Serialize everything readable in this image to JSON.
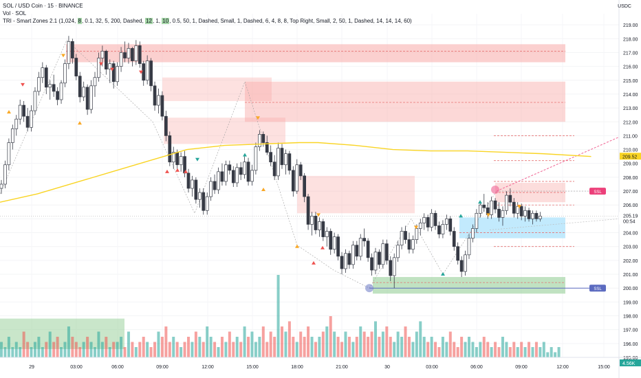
{
  "header": {
    "title": "SOL / USD Coin · 15 · BINANCE",
    "line2": "Vol · SOL",
    "indicator_prefix": "TRI - Smart Zones 2.1 (1,024,",
    "indicator_hl1": "8",
    "indicator_mid1": ", 0.1, 32, 5, 200, Dashed,",
    "indicator_hl2": "12",
    "indicator_mid2": ", 1,",
    "indicator_hl3": "10",
    "indicator_rest": ", 0.5, 50, 1, Dashed, Small, 1, Dashed, 6, 4, 8, 8, Top Right, Small, 2, 50, 1, Dashed, 14, 14, 14, 60)",
    "currency": "USDC"
  },
  "axis": {
    "price_ticks": [
      "219.00",
      "218.00",
      "217.00",
      "216.00",
      "215.00",
      "214.00",
      "213.00",
      "212.00",
      "211.00",
      "210.00",
      "209.00",
      "208.00",
      "207.00",
      "206.00",
      "205.00",
      "204.00",
      "203.00",
      "202.00",
      "201.00",
      "200.00",
      "199.00",
      "198.00",
      "197.00",
      "196.00",
      "195.00"
    ],
    "time_ticks": [
      "29",
      "03:00",
      "06:00",
      "09:00",
      "12:00",
      "15:00",
      "18:00",
      "21:00",
      "30",
      "03:00",
      "06:00",
      "09:00",
      "12:00",
      "15:00"
    ],
    "current_price": "205.19",
    "countdown": "00:54",
    "ma_price": "209.52",
    "volume_label": "4.56K"
  },
  "colors": {
    "up": "#26a69a",
    "down": "#ef5350",
    "candle": "#363a45",
    "ma": "#f9d423",
    "supply": "#f8a9a7",
    "demand": "#a5d6a7",
    "demand_blue": "#b3e5fc",
    "line_red": "#f06292",
    "level_blue": "#5c6bc0"
  },
  "zone_tags": {
    "swing_high": "SSL",
    "swing_low": "SSL"
  },
  "chart_data": {
    "type": "candlestick",
    "ylim": [
      195,
      219.8
    ],
    "x_range": [
      0,
      380
    ],
    "moving_average": [
      [
        0,
        206.2
      ],
      [
        20,
        206.8
      ],
      [
        40,
        207.6
      ],
      [
        60,
        208.4
      ],
      [
        80,
        209.2
      ],
      [
        90,
        209.6
      ],
      [
        100,
        210.0
      ],
      [
        120,
        210.3
      ],
      [
        140,
        210.4
      ],
      [
        160,
        210.5
      ],
      [
        170,
        210.5
      ],
      [
        190,
        210.3
      ],
      [
        210,
        210.0
      ],
      [
        230,
        209.9
      ],
      [
        250,
        209.9
      ],
      [
        270,
        209.8
      ],
      [
        290,
        209.7
      ],
      [
        316,
        209.5
      ]
    ],
    "candles": [
      [
        0,
        207.2,
        207.8,
        206.8,
        207.5
      ],
      [
        2,
        207.5,
        209.2,
        207.2,
        208.9
      ],
      [
        4,
        208.9,
        210.8,
        208.5,
        210.5
      ],
      [
        6,
        210.5,
        211.8,
        210.0,
        211.5
      ],
      [
        8,
        211.5,
        212.5,
        211.0,
        212.2
      ],
      [
        10,
        212.2,
        213.6,
        211.8,
        213.2
      ],
      [
        12,
        213.2,
        213.5,
        212.0,
        212.4
      ],
      [
        14,
        212.4,
        213.0,
        211.3,
        211.6
      ],
      [
        16,
        211.6,
        213.2,
        211.3,
        212.8
      ],
      [
        18,
        212.8,
        214.5,
        212.5,
        214.2
      ],
      [
        20,
        214.2,
        215.6,
        213.9,
        215.2
      ],
      [
        22,
        215.2,
        216.3,
        214.8,
        215.9
      ],
      [
        24,
        215.9,
        216.1,
        214.0,
        214.5
      ],
      [
        26,
        214.5,
        215.0,
        213.6,
        214.7
      ],
      [
        28,
        214.7,
        215.4,
        213.8,
        214.2
      ],
      [
        30,
        214.2,
        214.5,
        213.2,
        213.6
      ],
      [
        32,
        213.6,
        215.0,
        213.3,
        214.8
      ],
      [
        34,
        214.8,
        216.5,
        214.5,
        216.2
      ],
      [
        36,
        216.2,
        218.2,
        215.8,
        217.8
      ],
      [
        38,
        217.8,
        218.0,
        216.2,
        216.6
      ],
      [
        40,
        216.6,
        216.9,
        215.0,
        215.3
      ],
      [
        42,
        215.3,
        215.6,
        213.4,
        213.8
      ],
      [
        44,
        213.8,
        214.9,
        213.5,
        214.5
      ],
      [
        46,
        214.5,
        214.7,
        212.5,
        212.9
      ],
      [
        48,
        212.9,
        215.0,
        212.6,
        214.6
      ],
      [
        50,
        214.6,
        215.6,
        213.8,
        215.2
      ],
      [
        52,
        215.2,
        217.0,
        214.9,
        216.6
      ],
      [
        54,
        216.6,
        217.5,
        216.0,
        217.1
      ],
      [
        56,
        217.1,
        217.2,
        215.4,
        215.8
      ],
      [
        58,
        215.8,
        216.5,
        214.8,
        216.2
      ],
      [
        60,
        216.2,
        216.4,
        214.4,
        214.9
      ],
      [
        62,
        214.9,
        216.3,
        214.6,
        216.0
      ],
      [
        64,
        216.0,
        217.4,
        215.6,
        217.0
      ],
      [
        66,
        217.0,
        217.8,
        216.3,
        216.6
      ],
      [
        68,
        216.6,
        217.7,
        216.2,
        217.3
      ],
      [
        70,
        217.3,
        217.4,
        216.0,
        216.4
      ],
      [
        72,
        216.4,
        217.9,
        216.1,
        217.5
      ],
      [
        74,
        217.5,
        217.8,
        215.9,
        216.2
      ],
      [
        76,
        216.2,
        216.4,
        214.6,
        215.0
      ],
      [
        78,
        215.0,
        216.8,
        214.7,
        216.4
      ],
      [
        80,
        216.4,
        216.6,
        214.2,
        214.6
      ],
      [
        82,
        214.6,
        214.9,
        212.8,
        213.2
      ],
      [
        84,
        213.2,
        214.4,
        212.6,
        213.9
      ],
      [
        86,
        213.9,
        214.2,
        212.1,
        212.4
      ],
      [
        88,
        212.4,
        212.8,
        210.6,
        211.0
      ],
      [
        90,
        211.0,
        211.3,
        208.8,
        209.1
      ],
      [
        92,
        209.1,
        210.2,
        208.6,
        209.8
      ],
      [
        94,
        209.8,
        210.0,
        208.6,
        208.9
      ],
      [
        96,
        208.9,
        209.8,
        208.4,
        209.5
      ],
      [
        98,
        209.5,
        209.9,
        208.0,
        208.3
      ],
      [
        100,
        208.3,
        208.6,
        206.9,
        207.2
      ],
      [
        102,
        207.2,
        208.1,
        206.6,
        207.8
      ],
      [
        104,
        207.8,
        208.0,
        206.1,
        206.4
      ],
      [
        106,
        206.4,
        207.2,
        205.8,
        206.9
      ],
      [
        108,
        206.9,
        207.2,
        205.3,
        205.6
      ],
      [
        110,
        205.6,
        206.9,
        205.3,
        206.6
      ],
      [
        112,
        206.6,
        208.0,
        206.3,
        207.7
      ],
      [
        114,
        207.7,
        208.2,
        206.8,
        207.1
      ],
      [
        116,
        207.1,
        208.7,
        206.8,
        208.4
      ],
      [
        118,
        208.4,
        209.0,
        207.4,
        207.7
      ],
      [
        120,
        207.7,
        209.2,
        207.4,
        208.9
      ],
      [
        122,
        208.9,
        209.2,
        208.2,
        208.5
      ],
      [
        124,
        208.5,
        208.8,
        207.3,
        207.6
      ],
      [
        126,
        207.6,
        209.0,
        207.3,
        208.7
      ],
      [
        128,
        208.7,
        209.1,
        207.8,
        208.2
      ],
      [
        130,
        208.2,
        209.5,
        207.9,
        209.1
      ],
      [
        132,
        209.1,
        209.4,
        207.4,
        207.7
      ],
      [
        134,
        207.7,
        208.9,
        207.4,
        208.5
      ],
      [
        136,
        208.5,
        210.5,
        208.2,
        210.2
      ],
      [
        138,
        210.2,
        211.4,
        209.9,
        211.1
      ],
      [
        140,
        211.1,
        211.3,
        210.2,
        210.5
      ],
      [
        142,
        210.5,
        211.0,
        209.6,
        209.8
      ],
      [
        144,
        209.8,
        210.3,
        208.8,
        209.1
      ],
      [
        146,
        209.1,
        209.6,
        207.8,
        208.1
      ],
      [
        148,
        208.1,
        210.5,
        207.8,
        210.1
      ],
      [
        150,
        210.1,
        210.4,
        208.6,
        208.9
      ],
      [
        152,
        208.9,
        210.0,
        208.2,
        209.7
      ],
      [
        154,
        209.7,
        209.9,
        208.2,
        208.5
      ],
      [
        156,
        208.5,
        208.8,
        206.6,
        207.0
      ],
      [
        158,
        207.0,
        209.3,
        206.8,
        208.9
      ],
      [
        160,
        208.9,
        209.1,
        207.8,
        208.1
      ],
      [
        162,
        208.1,
        208.3,
        206.2,
        206.6
      ],
      [
        164,
        206.6,
        206.8,
        204.2,
        204.6
      ],
      [
        166,
        204.6,
        205.5,
        203.8,
        205.2
      ],
      [
        168,
        205.2,
        205.5,
        203.9,
        204.2
      ],
      [
        170,
        204.2,
        205.1,
        203.7,
        204.8
      ],
      [
        172,
        204.8,
        205.0,
        203.4,
        203.7
      ],
      [
        174,
        203.7,
        204.4,
        203.0,
        204.1
      ],
      [
        176,
        204.1,
        204.3,
        202.4,
        202.8
      ],
      [
        178,
        202.8,
        204.0,
        202.5,
        203.7
      ],
      [
        180,
        203.7,
        203.9,
        202.0,
        202.3
      ],
      [
        182,
        202.3,
        202.6,
        201.0,
        201.4
      ],
      [
        184,
        201.4,
        202.8,
        201.1,
        202.5
      ],
      [
        186,
        202.5,
        202.7,
        201.4,
        201.7
      ],
      [
        188,
        201.7,
        203.4,
        201.4,
        203.1
      ],
      [
        190,
        203.1,
        203.4,
        202.0,
        202.3
      ],
      [
        192,
        202.3,
        203.9,
        202.0,
        203.6
      ],
      [
        194,
        203.6,
        204.3,
        203.0,
        203.4
      ],
      [
        196,
        203.4,
        203.6,
        201.9,
        202.2
      ],
      [
        198,
        202.2,
        202.5,
        200.9,
        201.3
      ],
      [
        200,
        201.3,
        202.9,
        201.0,
        202.6
      ],
      [
        202,
        202.6,
        202.8,
        201.4,
        201.7
      ],
      [
        204,
        201.7,
        203.5,
        201.4,
        203.2
      ],
      [
        206,
        203.2,
        203.5,
        201.7,
        202.0
      ],
      [
        208,
        202.0,
        202.3,
        200.5,
        200.9
      ],
      [
        210,
        200.9,
        202.5,
        200.0,
        202.2
      ],
      [
        212,
        202.2,
        203.4,
        201.9,
        203.1
      ],
      [
        214,
        203.1,
        204.4,
        202.8,
        204.1
      ],
      [
        216,
        204.1,
        204.5,
        203.2,
        203.5
      ],
      [
        218,
        203.5,
        204.0,
        202.5,
        202.8
      ],
      [
        220,
        202.8,
        203.8,
        202.5,
        203.5
      ],
      [
        222,
        203.5,
        204.6,
        203.2,
        204.3
      ],
      [
        224,
        204.3,
        205.0,
        203.8,
        204.7
      ],
      [
        226,
        204.7,
        205.4,
        204.2,
        205.1
      ],
      [
        228,
        205.1,
        205.3,
        204.1,
        204.4
      ],
      [
        230,
        204.4,
        205.7,
        204.1,
        205.4
      ],
      [
        232,
        205.4,
        205.6,
        204.2,
        204.5
      ],
      [
        234,
        204.5,
        204.8,
        203.6,
        203.9
      ],
      [
        236,
        203.9,
        204.9,
        203.6,
        204.6
      ],
      [
        238,
        204.6,
        205.3,
        204.2,
        205.0
      ],
      [
        240,
        205.0,
        205.2,
        203.8,
        204.1
      ],
      [
        242,
        204.1,
        204.4,
        202.7,
        203.0
      ],
      [
        244,
        203.0,
        203.3,
        201.7,
        202.0
      ],
      [
        246,
        202.0,
        202.3,
        200.8,
        201.2
      ],
      [
        248,
        201.2,
        202.7,
        200.9,
        202.4
      ],
      [
        250,
        202.4,
        203.9,
        202.1,
        203.6
      ],
      [
        252,
        203.6,
        204.6,
        203.3,
        204.3
      ],
      [
        254,
        204.3,
        205.7,
        204.0,
        205.4
      ],
      [
        256,
        205.4,
        206.3,
        205.1,
        206.0
      ],
      [
        258,
        206.0,
        206.8,
        205.5,
        205.8
      ],
      [
        260,
        205.8,
        206.2,
        205.0,
        205.3
      ],
      [
        262,
        205.3,
        206.6,
        205.0,
        206.3
      ],
      [
        264,
        206.3,
        206.5,
        205.4,
        205.7
      ],
      [
        266,
        205.7,
        206.2,
        204.8,
        205.1
      ],
      [
        268,
        205.1,
        205.9,
        204.5,
        205.6
      ],
      [
        270,
        205.6,
        207.0,
        205.3,
        206.7
      ],
      [
        272,
        206.7,
        207.2,
        205.9,
        206.2
      ],
      [
        274,
        206.2,
        206.5,
        205.1,
        205.4
      ],
      [
        276,
        205.4,
        206.2,
        205.0,
        205.9
      ],
      [
        278,
        205.9,
        206.1,
        204.9,
        205.2
      ],
      [
        280,
        205.2,
        205.9,
        204.8,
        205.6
      ],
      [
        282,
        205.6,
        205.8,
        204.8,
        205.0
      ],
      [
        284,
        205.0,
        205.6,
        204.6,
        205.4
      ],
      [
        286,
        205.4,
        205.6,
        204.8,
        205.0
      ],
      [
        288,
        205.0,
        205.5,
        204.8,
        205.2
      ]
    ],
    "volume": [
      3,
      2,
      4,
      2,
      3,
      2,
      5,
      3,
      2,
      3,
      4,
      2,
      3,
      5,
      3,
      4,
      2,
      3,
      6,
      4,
      3,
      2,
      3,
      4,
      3,
      2,
      5,
      3,
      4,
      2,
      3,
      3,
      4,
      2,
      5,
      3,
      2,
      3,
      4,
      3,
      2,
      3,
      5,
      4,
      6,
      3,
      4,
      3,
      2,
      3,
      4,
      3,
      5,
      4,
      3,
      6,
      4,
      3,
      2,
      4,
      3,
      5,
      3,
      4,
      3,
      6,
      4,
      5,
      3,
      4,
      6,
      3,
      5,
      4,
      16,
      6,
      5,
      7,
      4,
      3,
      5,
      4,
      6,
      4,
      3,
      4,
      5,
      6,
      8,
      5,
      4,
      3,
      5,
      4,
      3,
      4,
      6,
      5,
      4,
      5,
      7,
      4,
      5,
      6,
      4,
      3,
      5,
      4,
      6,
      4,
      3,
      5,
      7,
      4,
      3,
      4,
      3,
      2,
      4,
      3,
      5,
      3,
      2,
      4,
      3,
      4,
      3,
      2,
      3,
      4,
      3,
      2,
      3,
      2,
      4,
      3,
      2,
      3,
      2,
      3,
      2,
      3,
      2,
      3,
      2,
      3,
      1,
      2,
      1,
      2
    ],
    "volume_max": 16
  }
}
